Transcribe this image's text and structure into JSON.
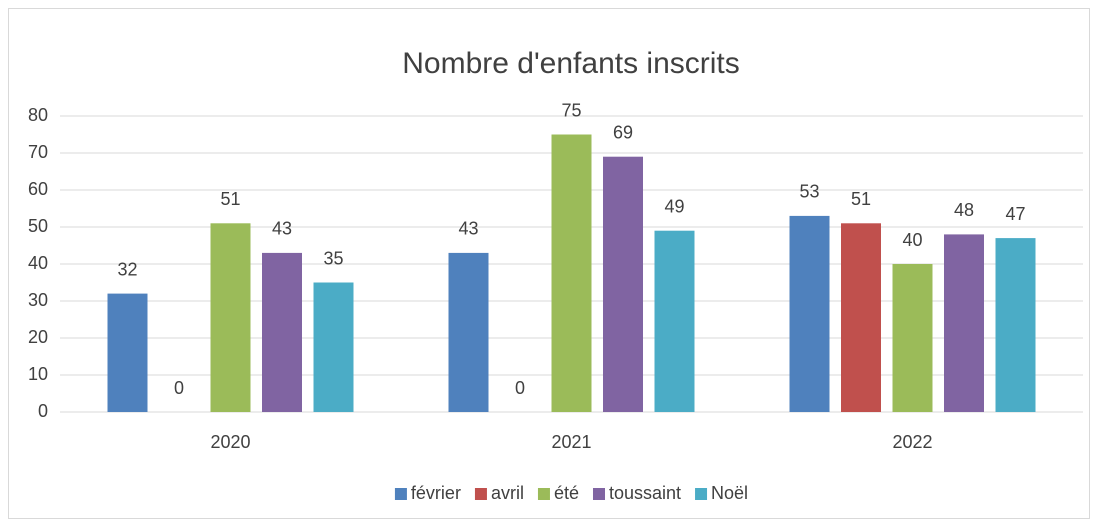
{
  "chart_data": {
    "type": "bar",
    "title": "Nombre d'enfants inscrits",
    "categories": [
      "2020",
      "2021",
      "2022"
    ],
    "series": [
      {
        "name": "février",
        "color": "#4f81bd",
        "values": [
          32,
          43,
          53
        ]
      },
      {
        "name": "avril",
        "color": "#c0504d",
        "values": [
          0,
          0,
          51
        ]
      },
      {
        "name": "été",
        "color": "#9bbb59",
        "values": [
          51,
          75,
          40
        ]
      },
      {
        "name": "toussaint",
        "color": "#8064a2",
        "values": [
          43,
          69,
          48
        ]
      },
      {
        "name": "Noël",
        "color": "#4bacc6",
        "values": [
          35,
          49,
          47
        ]
      }
    ],
    "ylim": [
      0,
      80
    ],
    "yticks": [
      0,
      10,
      20,
      30,
      40,
      50,
      60,
      70,
      80
    ],
    "grid": true,
    "legend": "bottom"
  }
}
